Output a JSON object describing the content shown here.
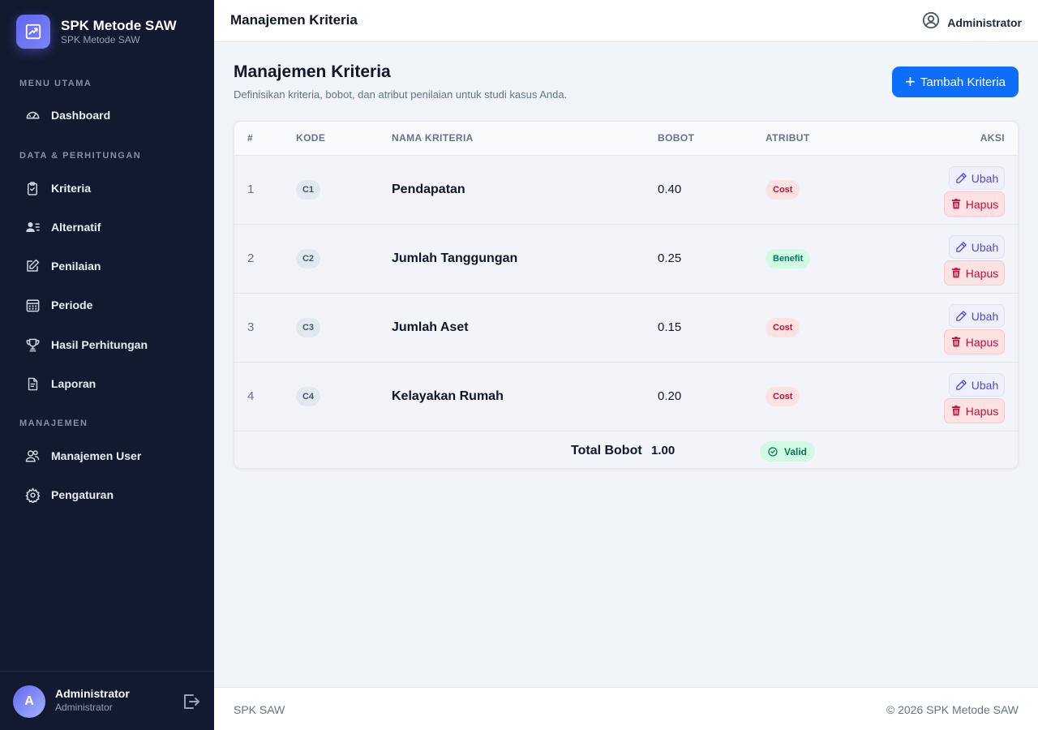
{
  "brand": {
    "title": "SPK Metode SAW",
    "subtitle": "SPK Metode SAW"
  },
  "sidebar": {
    "sections": [
      "MENU UTAMA",
      "DATA & PERHITUNGAN",
      "MANAJEMEN"
    ],
    "items": [
      {
        "label": "Dashboard",
        "icon": "gauge-icon"
      },
      {
        "label": "Kriteria",
        "icon": "clipboard-check-icon"
      },
      {
        "label": "Alternatif",
        "icon": "person-lines-icon"
      },
      {
        "label": "Penilaian",
        "icon": "pencil-square-icon"
      },
      {
        "label": "Periode",
        "icon": "calendar-icon"
      },
      {
        "label": "Hasil Perhitungan",
        "icon": "trophy-icon"
      },
      {
        "label": "Laporan",
        "icon": "document-icon"
      },
      {
        "label": "Manajemen User",
        "icon": "users-icon"
      },
      {
        "label": "Pengaturan",
        "icon": "gear-icon"
      }
    ],
    "user": {
      "initial": "A",
      "name": "Administrator",
      "role": "Administrator"
    }
  },
  "topbar": {
    "title": "Manajemen Kriteria",
    "user": "Administrator"
  },
  "page": {
    "title": "Manajemen Kriteria",
    "description": "Definisikan kriteria, bobot, dan atribut penilaian untuk studi kasus Anda.",
    "add_button": "Tambah Kriteria"
  },
  "table": {
    "headers": [
      "#",
      "KODE",
      "NAMA KRITERIA",
      "BOBOT",
      "ATRIBUT",
      "AKSI"
    ],
    "rows": [
      {
        "no": "1",
        "code": "C1",
        "name": "Pendapatan",
        "weight": "0.40",
        "attribute": "Cost"
      },
      {
        "no": "2",
        "code": "C2",
        "name": "Jumlah Tanggungan",
        "weight": "0.25",
        "attribute": "Benefit"
      },
      {
        "no": "3",
        "code": "C3",
        "name": "Jumlah Aset",
        "weight": "0.15",
        "attribute": "Cost"
      },
      {
        "no": "4",
        "code": "C4",
        "name": "Kelayakan Rumah",
        "weight": "0.20",
        "attribute": "Cost"
      }
    ],
    "edit_label": "Ubah",
    "delete_label": "Hapus",
    "total_label": "Total Bobot",
    "total_value": "1.00",
    "valid_label": "Valid"
  },
  "footer": {
    "left": "SPK SAW",
    "right": "© 2026 SPK Metode SAW"
  },
  "colors": {
    "sidebar": "#111a2e",
    "accent": "#0d6efd",
    "brand": "#6366f1",
    "cost": "#be123c",
    "benefit": "#047857"
  }
}
